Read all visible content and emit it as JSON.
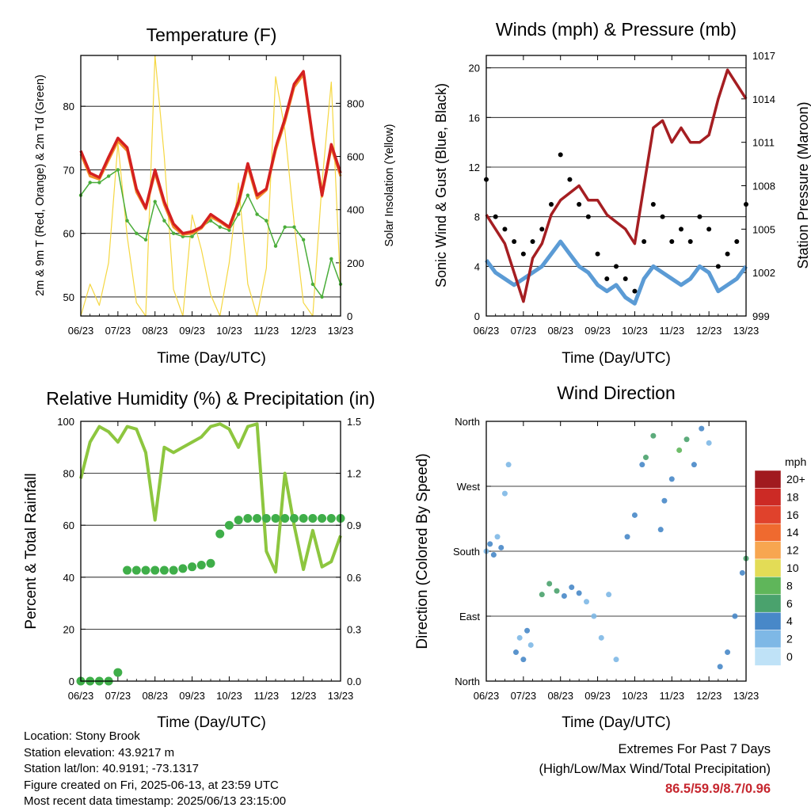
{
  "chart_data": [
    {
      "type": "line",
      "title": "Temperature (F)",
      "xlabel": "Time (Day/UTC)",
      "ylabel": "2m & 9m T (Red, Orange) & 2m Td (Green)",
      "y2label": "Solar Insolation (Yellow)",
      "x_ticks": [
        "06/23",
        "07/23",
        "08/23",
        "09/23",
        "10/23",
        "11/23",
        "12/23",
        "13/23"
      ],
      "ylim": [
        47,
        88
      ],
      "y_ticks": [
        50,
        60,
        70,
        80
      ],
      "y2lim": [
        0,
        980
      ],
      "y2_ticks": [
        0,
        200,
        400,
        600,
        800
      ],
      "grid": true,
      "colors": {
        "temp_2m": "#d42020",
        "temp_9m": "#f28e2b",
        "dewpoint": "#4aad3a",
        "solar": "#f5d742"
      },
      "x": [
        0,
        0.25,
        0.5,
        0.75,
        1,
        1.25,
        1.5,
        1.75,
        2,
        2.25,
        2.5,
        2.75,
        3,
        3.25,
        3.5,
        3.75,
        4,
        4.25,
        4.5,
        4.75,
        5,
        5.25,
        5.5,
        5.75,
        6,
        6.25,
        6.5,
        6.75,
        7
      ],
      "series": [
        {
          "values": [
            73,
            69.5,
            68.8,
            72,
            75,
            73.5,
            67,
            64,
            70,
            65,
            61.5,
            60,
            60.3,
            61,
            63,
            62,
            61,
            65,
            71,
            66,
            67,
            73.5,
            78,
            83.5,
            85.5,
            75,
            66,
            74,
            69.5
          ]
        },
        {
          "values": [
            72.5,
            69,
            68.5,
            71.5,
            74.5,
            73,
            66.5,
            63.8,
            69.5,
            64.5,
            61,
            59.8,
            60,
            60.8,
            62.6,
            61.8,
            60.8,
            64.5,
            70.5,
            65.5,
            66.8,
            73,
            77.5,
            83,
            85,
            74.5,
            65.8,
            73.5,
            69
          ]
        },
        {
          "values": [
            66,
            68,
            68,
            69,
            70,
            62,
            60,
            59,
            65,
            62,
            60,
            59.5,
            59.5,
            61,
            62,
            61,
            60.5,
            63,
            66,
            63,
            62,
            58,
            61,
            61,
            59,
            52,
            50,
            56,
            52
          ]
        },
        {
          "values": [
            0,
            120,
            40,
            200,
            650,
            300,
            50,
            0,
            980,
            600,
            100,
            0,
            380,
            250,
            80,
            0,
            200,
            500,
            120,
            0,
            180,
            900,
            700,
            350,
            50,
            0,
            500,
            880,
            100
          ]
        }
      ]
    },
    {
      "type": "scatter",
      "title": "Winds (mph) & Pressure (mb)",
      "xlabel": "Time (Day/UTC)",
      "ylabel": "Sonic Wind & Gust (Blue, Black)",
      "y2label": "Station Pressure (Maroon)",
      "x_ticks": [
        "06/23",
        "07/23",
        "08/23",
        "09/23",
        "10/23",
        "11/23",
        "12/23",
        "13/23"
      ],
      "ylim": [
        0,
        21
      ],
      "y_ticks": [
        0,
        4,
        8,
        12,
        16,
        20
      ],
      "y2lim": [
        999,
        1017
      ],
      "y2_ticks": [
        999,
        1002,
        1005,
        1008,
        1011,
        1014,
        1017
      ],
      "grid": true,
      "colors": {
        "wind": "#5b9bd5",
        "gust": "#000000",
        "pressure": "#a51e22"
      },
      "x": [
        0,
        0.25,
        0.5,
        0.75,
        1,
        1.25,
        1.5,
        1.75,
        2,
        2.25,
        2.5,
        2.75,
        3,
        3.25,
        3.5,
        3.75,
        4,
        4.25,
        4.5,
        4.75,
        5,
        5.25,
        5.5,
        5.75,
        6,
        6.25,
        6.5,
        6.75,
        7
      ],
      "series": [
        {
          "values": [
            4.5,
            3.5,
            3,
            2.5,
            3,
            3.5,
            4,
            5,
            6,
            5,
            4,
            3.5,
            2.5,
            2,
            2.5,
            1.5,
            1,
            3,
            4,
            3.5,
            3,
            2.5,
            3,
            4,
            3.5,
            2,
            2.5,
            3,
            4
          ]
        },
        {
          "values": [
            11,
            8,
            7,
            6,
            5,
            6,
            7,
            9,
            13,
            11,
            9,
            8,
            5,
            3,
            4,
            3,
            2,
            6,
            9,
            8,
            6,
            7,
            6,
            8,
            7,
            4,
            5,
            6,
            9
          ]
        },
        {
          "values": [
            1006,
            1005,
            1004,
            1002,
            1000,
            1003,
            1004,
            1006,
            1007,
            1007.5,
            1008,
            1007,
            1007,
            1006,
            1005.5,
            1005,
            1004,
            1008,
            1012,
            1012.5,
            1011,
            1012,
            1011,
            1011,
            1011.5,
            1014,
            1016,
            1015,
            1014
          ]
        }
      ]
    },
    {
      "type": "line",
      "title": "Relative Humidity (%) & Precipitation (in)",
      "xlabel": "Time (Day/UTC)",
      "ylabel": "Percent & Total Rainfall",
      "x_ticks": [
        "06/23",
        "07/23",
        "08/23",
        "09/23",
        "10/23",
        "11/23",
        "12/23",
        "13/23"
      ],
      "ylim": [
        0,
        100
      ],
      "y_ticks": [
        0,
        20,
        40,
        60,
        80,
        100
      ],
      "y2lim": [
        0,
        1.5
      ],
      "y2_ticks": [
        "0.0",
        "0.3",
        "0.6",
        "0.9",
        "1.2",
        "1.5"
      ],
      "grid": true,
      "colors": {
        "humidity": "#8dc63f",
        "precip": "#3fae49"
      },
      "x": [
        0,
        0.25,
        0.5,
        0.75,
        1,
        1.25,
        1.5,
        1.75,
        2,
        2.25,
        2.5,
        2.75,
        3,
        3.25,
        3.5,
        3.75,
        4,
        4.25,
        4.5,
        4.75,
        5,
        5.25,
        5.5,
        5.75,
        6,
        6.25,
        6.5,
        6.75,
        7
      ],
      "series": [
        {
          "values": [
            78,
            92,
            98,
            96,
            92,
            98,
            97,
            88,
            62,
            90,
            88,
            90,
            92,
            94,
            98,
            99,
            97,
            90,
            98,
            99,
            50,
            42,
            80,
            60,
            43,
            58,
            44,
            46,
            56
          ]
        },
        {
          "values": [
            0,
            0,
            0,
            0,
            0.05,
            0.64,
            0.64,
            0.64,
            0.64,
            0.64,
            0.64,
            0.65,
            0.66,
            0.67,
            0.68,
            0.85,
            0.9,
            0.93,
            0.94,
            0.94,
            0.94,
            0.94,
            0.94,
            0.94,
            0.94,
            0.94,
            0.94,
            0.94,
            0.94
          ]
        }
      ]
    },
    {
      "type": "scatter",
      "title": "Wind Direction",
      "xlabel": "Time (Day/UTC)",
      "ylabel": "Direction (Colored By Speed)",
      "x_ticks": [
        "06/23",
        "07/23",
        "08/23",
        "09/23",
        "10/23",
        "11/23",
        "12/23",
        "13/23"
      ],
      "y_labels": [
        "North",
        "East",
        "South",
        "West",
        "North"
      ],
      "ylim": [
        0,
        360
      ],
      "legend": {
        "title": "mph",
        "labels": [
          "20+",
          "18",
          "16",
          "14",
          "12",
          "10",
          "8",
          "6",
          "4",
          "2",
          "0"
        ],
        "colors": [
          "#a11a1f",
          "#cc2a25",
          "#e0422c",
          "#ef6a2f",
          "#f7a650",
          "#e3dc56",
          "#5fb65a",
          "#4aa26d",
          "#4888c8",
          "#7eb8e6",
          "#bfe2f7"
        ],
        "position": "right"
      },
      "points": [
        [
          0,
          180,
          2
        ],
        [
          0.1,
          190,
          4
        ],
        [
          0.2,
          175,
          3
        ],
        [
          0.3,
          200,
          2
        ],
        [
          0.4,
          185,
          3
        ],
        [
          0.5,
          260,
          2
        ],
        [
          0.6,
          300,
          1
        ],
        [
          0.8,
          40,
          3
        ],
        [
          0.9,
          60,
          2
        ],
        [
          1.0,
          30,
          3
        ],
        [
          1.1,
          70,
          4
        ],
        [
          1.2,
          50,
          2
        ],
        [
          1.5,
          120,
          5
        ],
        [
          1.7,
          135,
          6
        ],
        [
          1.9,
          125,
          5
        ],
        [
          2.1,
          118,
          4
        ],
        [
          2.3,
          130,
          3
        ],
        [
          2.5,
          122,
          4
        ],
        [
          2.7,
          110,
          2
        ],
        [
          2.9,
          90,
          1
        ],
        [
          3.1,
          60,
          2
        ],
        [
          3.3,
          120,
          1
        ],
        [
          3.5,
          30,
          2
        ],
        [
          3.8,
          200,
          3
        ],
        [
          4.0,
          230,
          4
        ],
        [
          4.2,
          300,
          3
        ],
        [
          4.3,
          310,
          6
        ],
        [
          4.5,
          340,
          5
        ],
        [
          4.7,
          210,
          3
        ],
        [
          4.8,
          250,
          4
        ],
        [
          5.0,
          280,
          3
        ],
        [
          5.2,
          320,
          7
        ],
        [
          5.4,
          335,
          6
        ],
        [
          5.6,
          300,
          4
        ],
        [
          5.8,
          350,
          3
        ],
        [
          6.0,
          330,
          2
        ],
        [
          6.3,
          20,
          3
        ],
        [
          6.5,
          40,
          4
        ],
        [
          6.7,
          90,
          3
        ],
        [
          6.9,
          150,
          4
        ],
        [
          7.0,
          170,
          5
        ]
      ]
    }
  ],
  "station": {
    "location": "Location: Stony Brook",
    "elevation": "Station elevation: 43.9217 m",
    "latlon": "Station lat/lon: 40.9191; -73.1317",
    "created": "Figure created on Fri, 2025-06-13, at 23:59 UTC",
    "recent": "Most recent data timestamp: 2025/06/13 23:15:00"
  },
  "extremes": {
    "heading": "Extremes For Past 7 Days",
    "subheading": "(High/Low/Max Wind/Total Precipitation)",
    "values": "86.5/59.9/8.7/0.96"
  }
}
